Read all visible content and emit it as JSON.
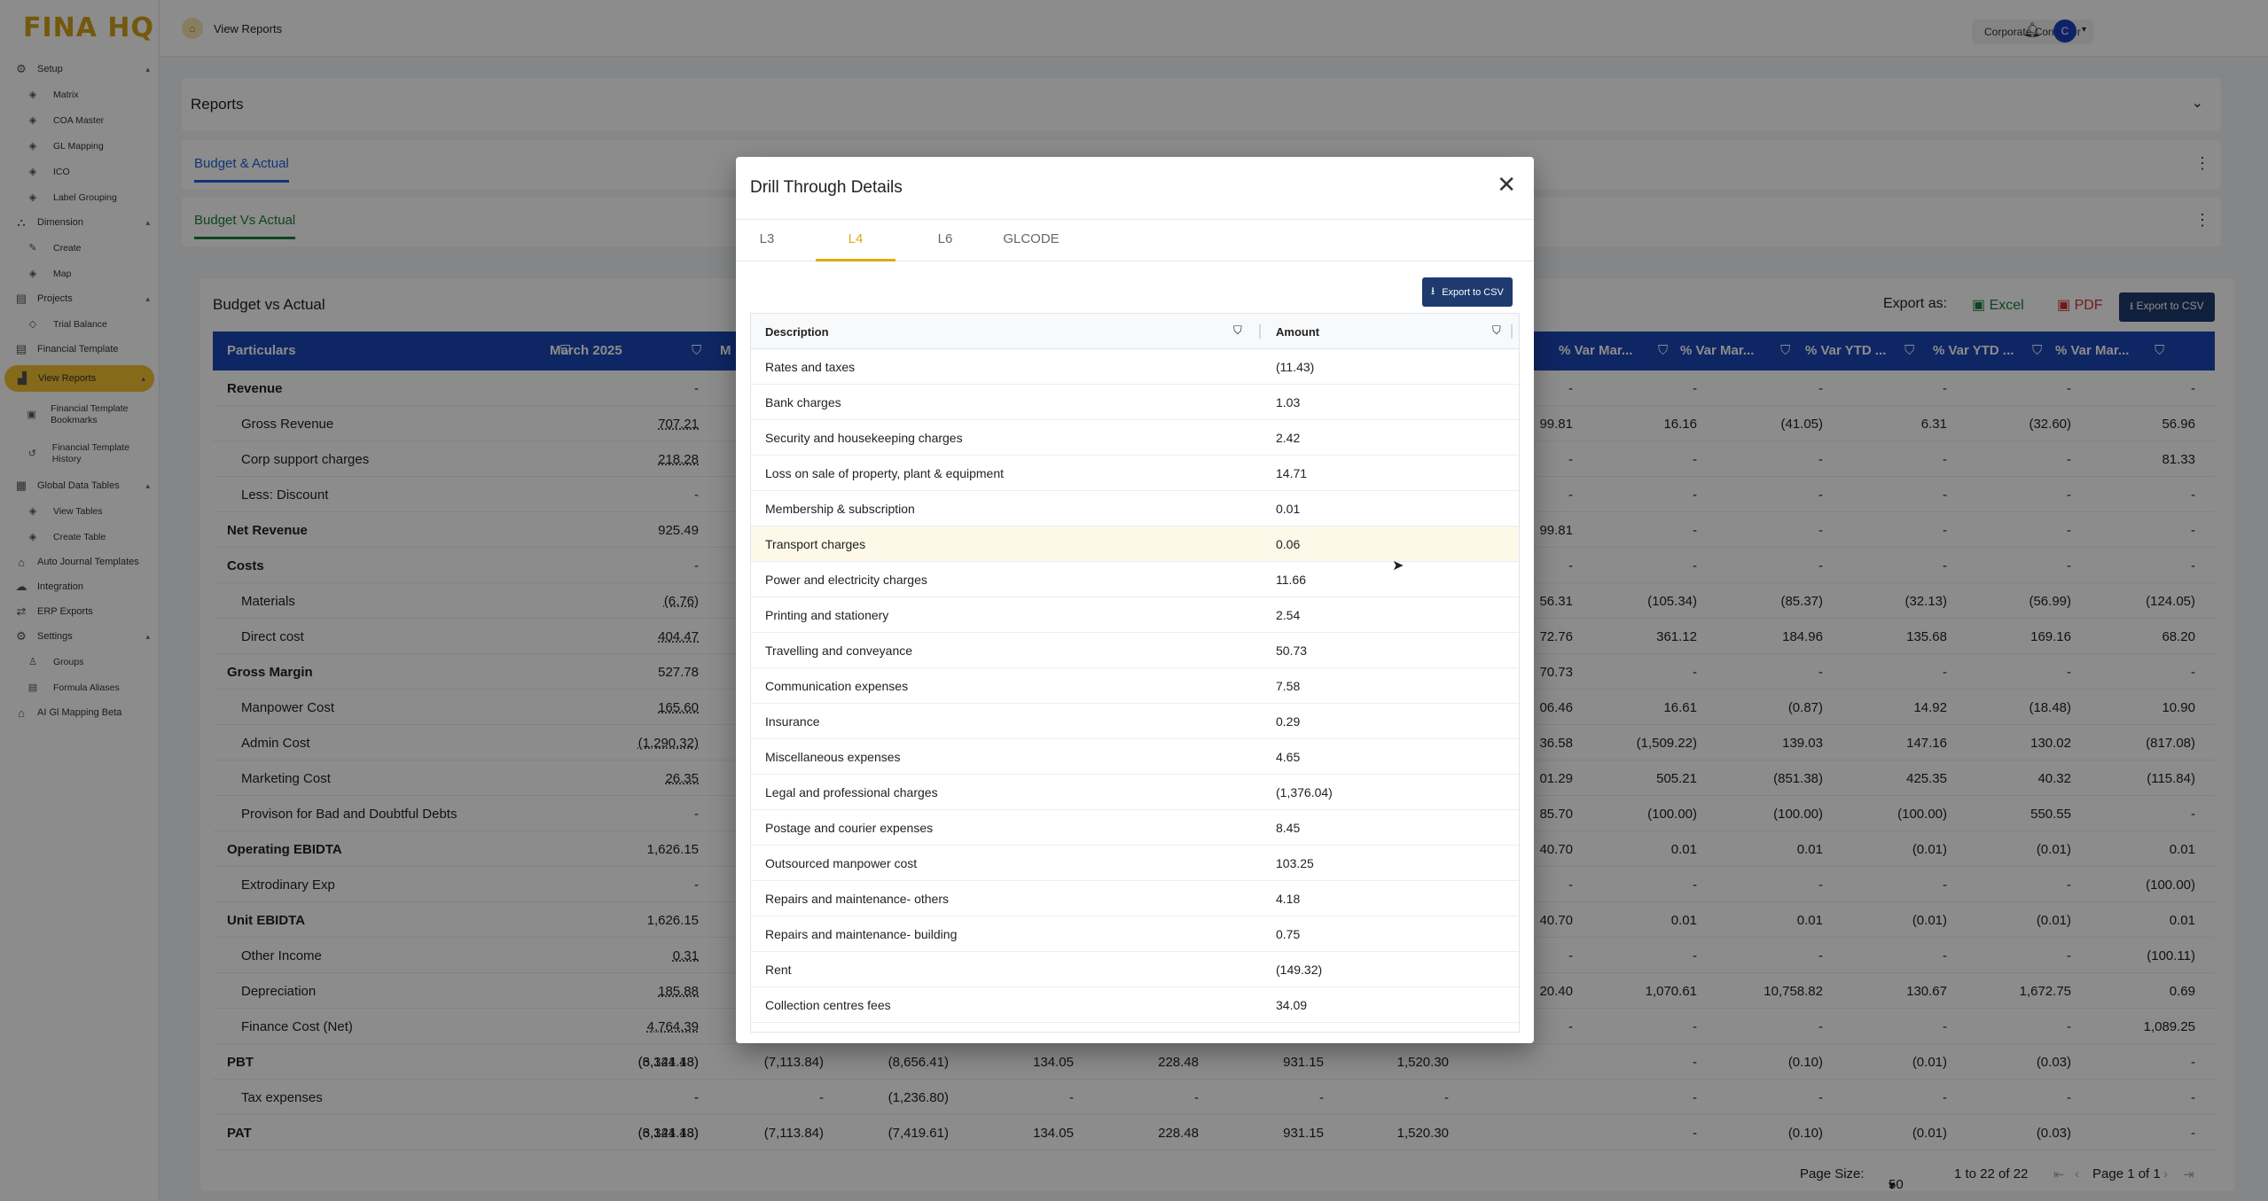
{
  "app": {
    "logo": "FINA HQ"
  },
  "sidebar": {
    "items": [
      {
        "type": "sec",
        "label": "Setup",
        "icon": "gear-icon",
        "glyph": "⚙",
        "chev": "▴"
      },
      {
        "type": "sub",
        "label": "Matrix",
        "icon": "layers-icon",
        "glyph": "◈"
      },
      {
        "type": "sub",
        "label": "COA Master",
        "icon": "layers-icon",
        "glyph": "◈"
      },
      {
        "type": "sub",
        "label": "GL Mapping",
        "icon": "layers-icon",
        "glyph": "◈"
      },
      {
        "type": "sub",
        "label": "ICO",
        "icon": "layers-icon",
        "glyph": "◈"
      },
      {
        "type": "sub",
        "label": "Label Grouping",
        "icon": "layers-icon",
        "glyph": "◈"
      },
      {
        "type": "sec",
        "label": "Dimension",
        "icon": "network-icon",
        "glyph": "⛬",
        "chev": "▴"
      },
      {
        "type": "sub",
        "label": "Create",
        "icon": "pencil-icon",
        "glyph": "✎"
      },
      {
        "type": "sub",
        "label": "Map",
        "icon": "layers-icon",
        "glyph": "◈"
      },
      {
        "type": "sec",
        "label": "Projects",
        "icon": "document-icon",
        "glyph": "▤",
        "chev": "▴"
      },
      {
        "type": "sub",
        "label": "Trial Balance",
        "icon": "diamond-icon",
        "glyph": "◇"
      },
      {
        "type": "sec",
        "label": "Financial Template",
        "icon": "document-icon",
        "glyph": "▤"
      },
      {
        "type": "active",
        "label": "View Reports",
        "icon": "chart-icon",
        "glyph": "▟",
        "chev": "▴"
      },
      {
        "type": "sub2",
        "label": "Financial Template Bookmarks",
        "icon": "bookmark-icon",
        "glyph": "▣"
      },
      {
        "type": "sub2",
        "label": "Financial Template History",
        "icon": "history-icon",
        "glyph": "↺"
      },
      {
        "type": "sec",
        "label": "Global Data Tables",
        "icon": "table-icon",
        "glyph": "▦",
        "chev": "▴"
      },
      {
        "type": "sub",
        "label": "View Tables",
        "icon": "layers-icon",
        "glyph": "◈"
      },
      {
        "type": "sub",
        "label": "Create Table",
        "icon": "layers-icon",
        "glyph": "◈"
      },
      {
        "type": "sec",
        "label": "Auto Journal Templates",
        "icon": "bank-icon",
        "glyph": "⌂"
      },
      {
        "type": "sec",
        "label": "Integration",
        "icon": "cloud-icon",
        "glyph": "☁"
      },
      {
        "type": "sec",
        "label": "ERP Exports",
        "icon": "arrows-icon",
        "glyph": "⇄"
      },
      {
        "type": "sec",
        "label": "Settings",
        "icon": "gear-icon",
        "glyph": "⚙",
        "chev": "▴"
      },
      {
        "type": "sub",
        "label": "Groups",
        "icon": "person-icon",
        "glyph": "♙"
      },
      {
        "type": "sub",
        "label": "Formula Aliases",
        "icon": "document-icon",
        "glyph": "▤"
      },
      {
        "type": "sec",
        "label": "AI Gl Mapping Beta",
        "icon": "bank-icon",
        "glyph": "⌂"
      }
    ]
  },
  "header": {
    "breadcrumb": "View Reports",
    "role": "Corporate Controller",
    "avatar_initial": "C"
  },
  "reports": {
    "title": "Reports",
    "tab1": "Budget & Actual",
    "tab2": "Budget Vs Actual"
  },
  "bva": {
    "title": "Budget vs Actual",
    "export_as": "Export as:",
    "excel": "Excel",
    "pdf": "PDF",
    "export_csv": "Export to CSV",
    "headers": [
      "Particulars",
      "March 2025",
      "M",
      "% Var Mar...",
      "% Var Mar...",
      "% Var YTD ...",
      "% Var YTD ...",
      "% Var Mar..."
    ],
    "rows": [
      {
        "p": "Revenue",
        "b": true,
        "c1": "-",
        "r": [
          "-",
          "-",
          "-",
          "-",
          "-",
          "-"
        ]
      },
      {
        "p": "Gross Revenue",
        "ind": true,
        "c1": "707.21",
        "r": [
          "99.81",
          "16.16",
          "(41.05)",
          "6.31",
          "(32.60)",
          "56.96"
        ]
      },
      {
        "p": "Corp support charges",
        "ind": true,
        "c1": "218.28",
        "r": [
          "-",
          "-",
          "-",
          "-",
          "-",
          "81.33"
        ]
      },
      {
        "p": "Less: Discount",
        "ind": true,
        "c1": "-",
        "r": [
          "-",
          "-",
          "-",
          "-",
          "-",
          "-"
        ]
      },
      {
        "p": "Net Revenue",
        "b": true,
        "c1": "925.49",
        "r": [
          "99.81",
          "-",
          "-",
          "-",
          "-",
          "-"
        ]
      },
      {
        "p": "Costs",
        "b": true,
        "c1": "-",
        "r": [
          "-",
          "-",
          "-",
          "-",
          "-",
          "-"
        ]
      },
      {
        "p": "Materials",
        "ind": true,
        "c1": "(6.76)",
        "r": [
          "56.31",
          "(105.34)",
          "(85.37)",
          "(32.13)",
          "(56.99)",
          "(124.05)"
        ]
      },
      {
        "p": "Direct cost",
        "ind": true,
        "c1": "404.47",
        "r": [
          "72.76",
          "361.12",
          "184.96",
          "135.68",
          "169.16",
          "68.20"
        ]
      },
      {
        "p": "Gross Margin",
        "b": true,
        "c1": "527.78",
        "r": [
          "70.73",
          "-",
          "-",
          "-",
          "-",
          "-"
        ]
      },
      {
        "p": "Manpower Cost",
        "ind": true,
        "c1": "165.60",
        "r": [
          "06.46",
          "16.61",
          "(0.87)",
          "14.92",
          "(18.48)",
          "10.90"
        ]
      },
      {
        "p": "Admin Cost",
        "ind": true,
        "c1": "(1,290.32)",
        "r": [
          "36.58",
          "(1,509.22)",
          "139.03",
          "147.16",
          "130.02",
          "(817.08)"
        ]
      },
      {
        "p": "Marketing Cost",
        "ind": true,
        "c1": "26.35",
        "r": [
          "01.29",
          "505.21",
          "(851.38)",
          "425.35",
          "40.32",
          "(115.84)"
        ]
      },
      {
        "p": "Provison for Bad and Doubtful Debts",
        "ind": true,
        "c1": "-",
        "r": [
          "85.70",
          "(100.00)",
          "(100.00)",
          "(100.00)",
          "550.55",
          "-"
        ]
      },
      {
        "p": "Operating EBIDTA",
        "b": true,
        "c1": "1,626.15",
        "r": [
          "40.70",
          "0.01",
          "0.01",
          "(0.01)",
          "(0.01)",
          "0.01"
        ]
      },
      {
        "p": "Extrodinary Exp",
        "ind": true,
        "c1": "-",
        "r": [
          "-",
          "-",
          "-",
          "-",
          "-",
          "(100.00)"
        ]
      },
      {
        "p": "Unit EBIDTA",
        "b": true,
        "c1": "1,626.15",
        "r": [
          "40.70",
          "0.01",
          "0.01",
          "(0.01)",
          "(0.01)",
          "0.01"
        ]
      },
      {
        "p": "Other Income",
        "ind": true,
        "c1": "0.31",
        "r": [
          "-",
          "-",
          "-",
          "-",
          "-",
          "(100.11)"
        ]
      },
      {
        "p": "Depreciation",
        "ind": true,
        "c1": "185.88",
        "r": [
          "20.40",
          "1,070.61",
          "10,758.82",
          "130.67",
          "1,672.75",
          "0.69"
        ]
      },
      {
        "p": "Finance Cost (Net)",
        "ind": true,
        "c1": "4,764.39",
        "r": [
          "-",
          "-",
          "-",
          "-",
          "-",
          "1,089.25"
        ]
      },
      {
        "p": "PBT",
        "b": true,
        "c1": "(3,324.43)",
        "mid": [
          "(6,141.18)",
          "(7,113.84)",
          "(8,656.41)",
          "134.05",
          "228.48",
          "931.15",
          "1,520.30"
        ],
        "r": [
          "-",
          "-",
          "(0.10)",
          "(0.01)",
          "(0.03)",
          "-"
        ]
      },
      {
        "p": "Tax expenses",
        "ind": true,
        "c1": "-",
        "mid": [
          "-",
          "-",
          "(1,236.80)",
          "-",
          "-",
          "-",
          "-"
        ],
        "r": [
          "-",
          "-",
          "-",
          "-",
          "-",
          "-"
        ]
      },
      {
        "p": "PAT",
        "b": true,
        "c1": "(3,324.43)",
        "mid": [
          "(6,141.18)",
          "(7,113.84)",
          "(7,419.61)",
          "134.05",
          "228.48",
          "931.15",
          "1,520.30"
        ],
        "r": [
          "-",
          "-",
          "(0.10)",
          "(0.01)",
          "(0.03)",
          "-"
        ]
      }
    ],
    "footer": {
      "page_size_label": "Page Size:",
      "page_size": "50",
      "range": "1 to 22 of 22",
      "page": "Page 1 of 1"
    }
  },
  "modal": {
    "title": "Drill Through Details",
    "tabs": [
      "L3",
      "L4",
      "L6",
      "GLCODE"
    ],
    "active_tab": "L4",
    "export_csv": "Export to CSV",
    "col_description": "Description",
    "col_amount": "Amount",
    "rows": [
      {
        "d": "Rates and taxes",
        "a": "(11.43)"
      },
      {
        "d": "Bank charges",
        "a": "1.03"
      },
      {
        "d": "Security and housekeeping charges",
        "a": "2.42"
      },
      {
        "d": "Loss on sale of property, plant & equipment",
        "a": "14.71"
      },
      {
        "d": "Membership & subscription",
        "a": "0.01"
      },
      {
        "d": "Transport charges",
        "a": "0.06"
      },
      {
        "d": "Power and electricity charges",
        "a": "11.66"
      },
      {
        "d": "Printing and stationery",
        "a": "2.54"
      },
      {
        "d": "Travelling and conveyance",
        "a": "50.73"
      },
      {
        "d": "Communication expenses",
        "a": "7.58"
      },
      {
        "d": "Insurance",
        "a": "0.29"
      },
      {
        "d": "Miscellaneous expenses",
        "a": "4.65"
      },
      {
        "d": "Legal and professional charges",
        "a": "(1,376.04)"
      },
      {
        "d": "Postage and courier expenses",
        "a": "8.45"
      },
      {
        "d": "Outsourced manpower cost",
        "a": "103.25"
      },
      {
        "d": "Repairs and maintenance- others",
        "a": "4.18"
      },
      {
        "d": "Repairs and maintenance- building",
        "a": "0.75"
      },
      {
        "d": "Rent",
        "a": "(149.32)"
      },
      {
        "d": "Collection centres fees",
        "a": "34.09"
      }
    ]
  }
}
